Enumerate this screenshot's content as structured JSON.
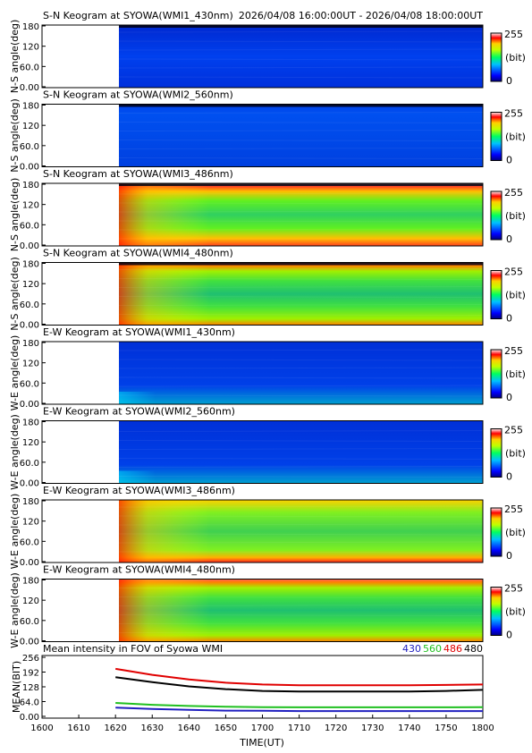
{
  "header": {
    "time_range": "2026/04/08 16:00:00UT - 2026/04/08 18:00:00UT"
  },
  "colorbar": {
    "max_label": "255",
    "unit_label": "(bit)",
    "min_label": "0"
  },
  "colors": {
    "blue_430": "#2020c0",
    "green_560": "#20c020",
    "red_486": "#e00000",
    "black_480": "#000000"
  },
  "panels": [
    {
      "title": "S-N Keogram at SYOWA(WMI1_430nm)",
      "ylabel": "N-S angle(deg)",
      "yticks": [
        "180",
        "120",
        "60.0",
        "0.00"
      ],
      "intensity": "low",
      "edge": "none"
    },
    {
      "title": "S-N Keogram at SYOWA(WMI2_560nm)",
      "ylabel": "N-S angle(deg)",
      "yticks": [
        "180",
        "120",
        "60.0",
        "0.00"
      ],
      "intensity": "low",
      "edge": "none"
    },
    {
      "title": "S-N Keogram at SYOWA(WMI3_486nm)",
      "ylabel": "N-S angle(deg)",
      "yticks": [
        "180",
        "120",
        "60.0",
        "0.00"
      ],
      "intensity": "high",
      "edge": "both"
    },
    {
      "title": "S-N Keogram at SYOWA(WMI4_480nm)",
      "ylabel": "N-S angle(deg)",
      "yticks": [
        "180",
        "120",
        "60.0",
        "0.00"
      ],
      "intensity": "mid",
      "edge": "both"
    },
    {
      "title": "E-W Keogram at SYOWA(WMI1_430nm)",
      "ylabel": "W-E angle(deg)",
      "yticks": [
        "180",
        "120",
        "60.0",
        "0.00"
      ],
      "intensity": "low",
      "edge": "none"
    },
    {
      "title": "E-W Keogram at SYOWA(WMI2_560nm)",
      "ylabel": "W-E angle(deg)",
      "yticks": [
        "180",
        "120",
        "60.0",
        "0.00"
      ],
      "intensity": "low",
      "edge": "none"
    },
    {
      "title": "E-W Keogram at SYOWA(WMI3_486nm)",
      "ylabel": "W-E angle(deg)",
      "yticks": [
        "180",
        "120",
        "60.0",
        "0.00"
      ],
      "intensity": "high",
      "edge": "bottom"
    },
    {
      "title": "E-W Keogram at SYOWA(WMI4_480nm)",
      "ylabel": "W-E angle(deg)",
      "yticks": [
        "180",
        "120",
        "60.0",
        "0.00"
      ],
      "intensity": "mid",
      "edge": "both"
    }
  ],
  "chart_data": {
    "type": "line",
    "title": "Mean intensity in FOV of Syowa WMI",
    "xlabel": "TIME(UT)",
    "ylabel": "MEAN(BIT)",
    "x_ticks": [
      "1600",
      "1610",
      "1620",
      "1630",
      "1640",
      "1650",
      "1700",
      "1710",
      "1720",
      "1730",
      "1740",
      "1750",
      "1800"
    ],
    "y_ticks": [
      "256",
      "192",
      "128",
      "64.0",
      "0.00"
    ],
    "ylim": [
      0,
      256
    ],
    "legend_position": "top-right",
    "x": [
      1620,
      1630,
      1640,
      1650,
      1700,
      1710,
      1720,
      1730,
      1740,
      1750,
      1800
    ],
    "series": [
      {
        "name": "430",
        "color": "#2020c0",
        "values": [
          38,
          32,
          28,
          25,
          24,
          23,
          23,
          23,
          23,
          23,
          23
        ]
      },
      {
        "name": "560",
        "color": "#20c020",
        "values": [
          58,
          50,
          45,
          42,
          40,
          39,
          39,
          39,
          39,
          39,
          40
        ]
      },
      {
        "name": "486",
        "color": "#e00000",
        "values": [
          206,
          180,
          160,
          146,
          138,
          135,
          135,
          135,
          135,
          136,
          138
        ]
      },
      {
        "name": "480",
        "color": "#000000",
        "values": [
          170,
          148,
          130,
          118,
          110,
          108,
          108,
          108,
          108,
          110,
          115
        ]
      }
    ]
  }
}
